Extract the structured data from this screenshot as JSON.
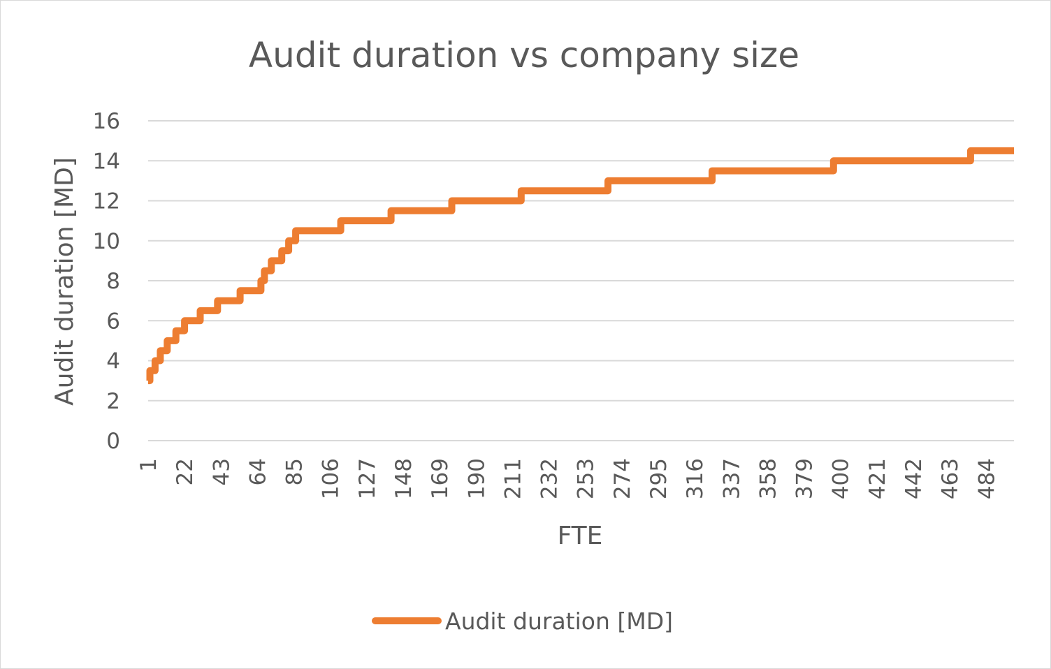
{
  "chart_data": {
    "type": "line",
    "title": "Audit duration vs company size",
    "xlabel": "FTE",
    "ylabel": "Audit duration [MD]",
    "ylim": [
      0,
      16
    ],
    "yticks": [
      "0",
      "2",
      "4",
      "6",
      "8",
      "10",
      "12",
      "14",
      "16"
    ],
    "xlim": [
      1,
      500
    ],
    "xticks": [
      "1",
      "22",
      "43",
      "64",
      "85",
      "106",
      "127",
      "148",
      "169",
      "190",
      "211",
      "232",
      "253",
      "274",
      "295",
      "316",
      "337",
      "358",
      "379",
      "400",
      "421",
      "442",
      "463",
      "484"
    ],
    "grid": true,
    "legend_position": "bottom",
    "series": [
      {
        "name": "Audit duration [MD]",
        "color": "#ED7D31",
        "steps": [
          [
            1,
            3
          ],
          [
            2,
            3.5
          ],
          [
            5,
            4
          ],
          [
            8,
            4.5
          ],
          [
            12,
            5
          ],
          [
            17,
            5.5
          ],
          [
            22,
            6
          ],
          [
            31,
            6.5
          ],
          [
            41,
            7
          ],
          [
            54,
            7.5
          ],
          [
            66,
            8
          ],
          [
            68,
            8.5
          ],
          [
            72,
            9
          ],
          [
            78,
            9.5
          ],
          [
            82,
            10
          ],
          [
            86,
            10.5
          ],
          [
            112,
            11
          ],
          [
            141,
            11.5
          ],
          [
            176,
            12
          ],
          [
            216,
            12.5
          ],
          [
            266,
            13
          ],
          [
            326,
            13.5
          ],
          [
            396,
            14
          ],
          [
            475,
            14.5
          ],
          [
            500,
            14.5
          ]
        ]
      }
    ]
  }
}
